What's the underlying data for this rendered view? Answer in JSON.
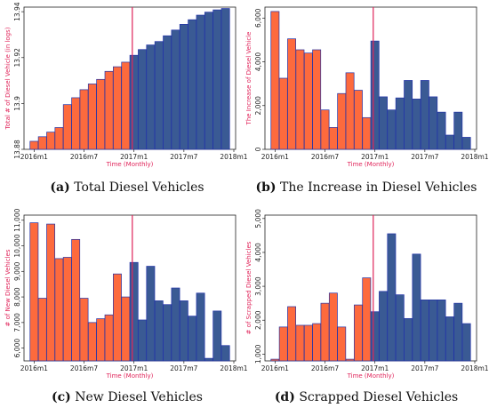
{
  "colors": {
    "orange": "#fd6a3d",
    "blue": "#3a5a94",
    "bar_edge": "#2333a8",
    "vline": "#e0245a",
    "axis_title": "#e0245a"
  },
  "chart_data": [
    {
      "type": "bar",
      "panel": "a",
      "caption_letter": "(a)",
      "caption_text": "Total Diesel Vehicles",
      "xlabel": "Time (Monthly)",
      "ylabel": "Total # of Diesel Vehicle (in logs)",
      "xlim": [
        0,
        25
      ],
      "xticks": [
        {
          "pos": 1,
          "label": "2016m1"
        },
        {
          "pos": 7,
          "label": "2016m7"
        },
        {
          "pos": 13,
          "label": "2017m1"
        },
        {
          "pos": 19,
          "label": "2017m7"
        },
        {
          "pos": 25,
          "label": "2018m1"
        }
      ],
      "ylim": [
        13.88,
        13.942
      ],
      "yticks": [
        13.88,
        13.9,
        13.92,
        13.94
      ],
      "ytick_labels": [
        "13.88",
        "13.9",
        "13.92",
        "13.94"
      ],
      "baseline": 13.88,
      "vline": 12.8,
      "x": [
        1,
        2,
        3,
        4,
        5,
        6,
        7,
        8,
        9,
        10,
        11,
        12,
        13,
        14,
        15,
        16,
        17,
        18,
        19,
        20,
        21,
        22,
        23,
        24
      ],
      "values": [
        13.8835,
        13.8855,
        13.8875,
        13.8895,
        13.8995,
        13.9025,
        13.906,
        13.9085,
        13.9105,
        13.914,
        13.916,
        13.918,
        13.921,
        13.9235,
        13.9255,
        13.927,
        13.9295,
        13.932,
        13.9345,
        13.9365,
        13.9385,
        13.9398,
        13.9408,
        13.9414
      ],
      "value_scale": "log",
      "colors": [
        "orange",
        "orange",
        "orange",
        "orange",
        "orange",
        "orange",
        "orange",
        "orange",
        "orange",
        "orange",
        "orange",
        "orange",
        "blue",
        "blue",
        "blue",
        "blue",
        "blue",
        "blue",
        "blue",
        "blue",
        "blue",
        "blue",
        "blue",
        "blue"
      ]
    },
    {
      "type": "bar",
      "panel": "b",
      "caption_letter": "(b)",
      "caption_text": "The Increase in Diesel Vehicles",
      "xlabel": "Time (Monthly)",
      "ylabel": "The Increase of Diesel Vehicle",
      "xlim": [
        0,
        25
      ],
      "xticks": [
        {
          "pos": 1,
          "label": "2016m1"
        },
        {
          "pos": 7,
          "label": "2016m7"
        },
        {
          "pos": 13,
          "label": "2017m1"
        },
        {
          "pos": 19,
          "label": "2017m7"
        },
        {
          "pos": 25,
          "label": "2018m1"
        }
      ],
      "ylim": [
        0,
        6500
      ],
      "yticks": [
        0,
        2000,
        4000,
        6000
      ],
      "ytick_labels": [
        "0",
        "2,000",
        "4,000",
        "6,000"
      ],
      "baseline": 0,
      "vline": 12.8,
      "x": [
        1,
        2,
        3,
        4,
        5,
        6,
        7,
        8,
        9,
        10,
        11,
        12,
        13,
        14,
        15,
        16,
        17,
        18,
        19,
        20,
        21,
        22,
        23,
        24
      ],
      "values": [
        6300,
        3250,
        5050,
        4550,
        4400,
        4550,
        1800,
        1000,
        2550,
        3500,
        2700,
        1450,
        4950,
        2400,
        1800,
        2350,
        3150,
        2300,
        3150,
        2400,
        1700,
        650,
        1700,
        550
      ],
      "colors": [
        "orange",
        "orange",
        "orange",
        "orange",
        "orange",
        "orange",
        "orange",
        "orange",
        "orange",
        "orange",
        "orange",
        "orange",
        "blue",
        "blue",
        "blue",
        "blue",
        "blue",
        "blue",
        "blue",
        "blue",
        "blue",
        "blue",
        "blue",
        "blue"
      ]
    },
    {
      "type": "bar",
      "panel": "c",
      "caption_letter": "(c)",
      "caption_text": "New Diesel Vehicles",
      "xlabel": "Time (Monthly)",
      "ylabel": "# of New Diesel Vehicles",
      "xlim": [
        0,
        25
      ],
      "xticks": [
        {
          "pos": 1,
          "label": "2016m1"
        },
        {
          "pos": 7,
          "label": "2016m7"
        },
        {
          "pos": 13,
          "label": "2017m1"
        },
        {
          "pos": 19,
          "label": "2017m7"
        },
        {
          "pos": 25,
          "label": "2018m1"
        }
      ],
      "ylim": [
        5500,
        11200
      ],
      "yticks": [
        6000,
        7000,
        8000,
        9000,
        10000,
        11000
      ],
      "ytick_labels": [
        "6,000",
        "7,000",
        "8,000",
        "9,000",
        "10,000",
        "11,000"
      ],
      "baseline": 5500,
      "vline": 12.8,
      "x": [
        1,
        2,
        3,
        4,
        5,
        6,
        7,
        8,
        9,
        10,
        11,
        12,
        13,
        14,
        15,
        16,
        17,
        18,
        19,
        20,
        21,
        22,
        23,
        24
      ],
      "values": [
        10900,
        7950,
        10850,
        9500,
        9550,
        10250,
        7950,
        7000,
        7150,
        7300,
        8900,
        8000,
        9350,
        7100,
        9200,
        7850,
        7700,
        8350,
        7850,
        7250,
        8150,
        5600,
        7450,
        6100
      ],
      "colors": [
        "orange",
        "orange",
        "orange",
        "orange",
        "orange",
        "orange",
        "orange",
        "orange",
        "orange",
        "orange",
        "orange",
        "orange",
        "blue",
        "blue",
        "blue",
        "blue",
        "blue",
        "blue",
        "blue",
        "blue",
        "blue",
        "blue",
        "blue",
        "blue"
      ]
    },
    {
      "type": "bar",
      "panel": "d",
      "caption_letter": "(d)",
      "caption_text": "Scrapped Diesel Vehicles",
      "xlabel": "Time (Monthly)",
      "ylabel": "# of Scrapped Diesel Vehicles",
      "xlim": [
        0,
        25
      ],
      "xticks": [
        {
          "pos": 1,
          "label": "2016m1"
        },
        {
          "pos": 7,
          "label": "2016m7"
        },
        {
          "pos": 13,
          "label": "2017m1"
        },
        {
          "pos": 19,
          "label": "2017m7"
        },
        {
          "pos": 25,
          "label": "2018m1"
        }
      ],
      "ylim": [
        800,
        5100
      ],
      "yticks": [
        1000,
        2000,
        3000,
        4000,
        5000
      ],
      "ytick_labels": [
        "1,000",
        "2,000",
        "3,000",
        "4,000",
        "5,000"
      ],
      "baseline": 800,
      "vline": 12.8,
      "x": [
        1,
        2,
        3,
        4,
        5,
        6,
        7,
        8,
        9,
        10,
        11,
        12,
        13,
        14,
        15,
        16,
        17,
        18,
        19,
        20,
        21,
        22,
        23,
        24
      ],
      "values": [
        850,
        1800,
        2400,
        1850,
        1850,
        1900,
        2500,
        2800,
        1800,
        850,
        2450,
        3250,
        2250,
        2850,
        4550,
        2750,
        2050,
        3950,
        2600,
        2600,
        2600,
        2100,
        2500,
        1900
      ],
      "colors": [
        "orange",
        "orange",
        "orange",
        "orange",
        "orange",
        "orange",
        "orange",
        "orange",
        "orange",
        "orange",
        "orange",
        "orange",
        "blue",
        "blue",
        "blue",
        "blue",
        "blue",
        "blue",
        "blue",
        "blue",
        "blue",
        "blue",
        "blue",
        "blue"
      ]
    }
  ]
}
